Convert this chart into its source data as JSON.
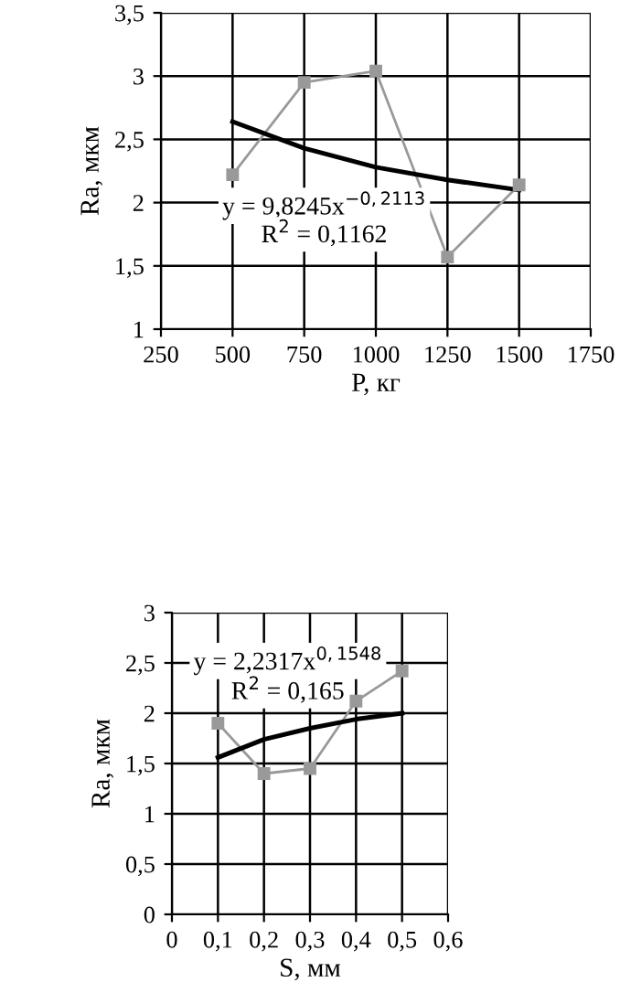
{
  "chart_data": [
    {
      "type": "line",
      "xlabel": "P, кг",
      "ylabel": "Ra, мкм",
      "xlim": [
        250,
        1750
      ],
      "xticks": [
        250,
        500,
        750,
        1000,
        1250,
        1500,
        1750
      ],
      "ylim": [
        1,
        3.5
      ],
      "yticks": [
        1,
        {
          "value": 1.5,
          "label": "1,5"
        },
        2,
        {
          "value": 2.5,
          "label": "2,5"
        },
        3,
        {
          "value": 3.5,
          "label": "3,5"
        }
      ],
      "grid": true,
      "legend": false,
      "series": [
        {
          "x": [
            500,
            750,
            1000,
            1250,
            1500
          ],
          "values": [
            2.22,
            2.95,
            3.04,
            1.57,
            2.14
          ],
          "color": "#999999",
          "marker": "square"
        },
        {
          "x": [
            500,
            750,
            1000,
            1250,
            1500
          ],
          "values": [
            2.64,
            2.43,
            2.28,
            2.18,
            2.1
          ],
          "color": "#000000",
          "marker": "none"
        }
      ],
      "annotations": [
        "y = 9,8245x$^{−0,2113}$",
        "R$^{2}$ = 0,1162"
      ]
    },
    {
      "type": "line",
      "xlabel": "S, мм",
      "ylabel": "Ra, мкм",
      "xlim": [
        0,
        0.6
      ],
      "xticks": [
        0,
        {
          "value": 0.1,
          "label": "0,1"
        },
        {
          "value": 0.2,
          "label": "0,2"
        },
        {
          "value": 0.3,
          "label": "0,3"
        },
        {
          "value": 0.4,
          "label": "0,4"
        },
        {
          "value": 0.5,
          "label": "0,5"
        },
        {
          "value": 0.6,
          "label": "0,6"
        }
      ],
      "ylim": [
        0,
        3
      ],
      "yticks": [
        0,
        {
          "value": 0.5,
          "label": "0,5"
        },
        1,
        {
          "value": 1.5,
          "label": "1,5"
        },
        2,
        {
          "value": 2.5,
          "label": "2,5"
        },
        3
      ],
      "grid": true,
      "legend": false,
      "series": [
        {
          "x": [
            0.1,
            0.2,
            0.3,
            0.4,
            0.5
          ],
          "values": [
            1.9,
            1.4,
            1.45,
            2.12,
            2.42
          ],
          "color": "#999999",
          "marker": "square"
        },
        {
          "x": [
            0.1,
            0.2,
            0.3,
            0.4,
            0.5
          ],
          "values": [
            1.56,
            1.74,
            1.85,
            1.94,
            2.0
          ],
          "color": "#000000",
          "marker": "none"
        }
      ],
      "annotations": [
        "y = 2,2317x$^{0,1548}$",
        "R$^{2}$ = 0,165"
      ]
    }
  ]
}
